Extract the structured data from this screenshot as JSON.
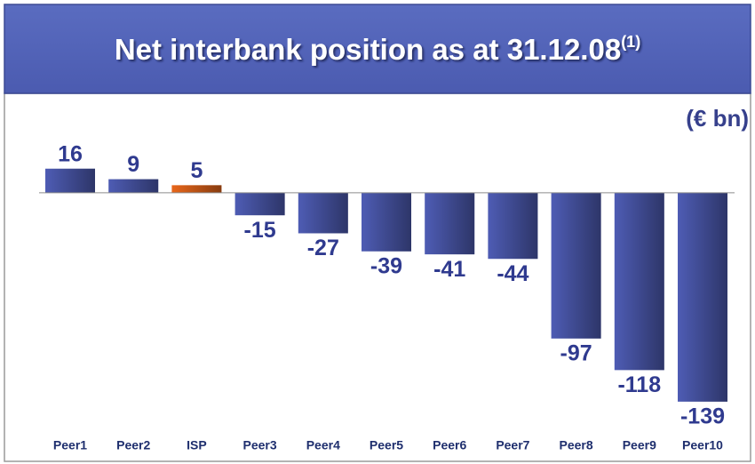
{
  "chart_data": {
    "type": "bar",
    "title": "Net interbank position as at 31.12.08",
    "title_note": "(1)",
    "unit_label": "(€ bn)",
    "categories": [
      "Peer1",
      "Peer2",
      "ISP",
      "Peer3",
      "Peer4",
      "Peer5",
      "Peer6",
      "Peer7",
      "Peer8",
      "Peer9",
      "Peer10"
    ],
    "values": [
      16,
      9,
      5,
      -15,
      -27,
      -39,
      -41,
      -44,
      -97,
      -118,
      -139
    ],
    "colors": [
      "#4e5cb4",
      "#4e5cb4",
      "#e8661a",
      "#4e5cb4",
      "#4e5cb4",
      "#4e5cb4",
      "#4e5cb4",
      "#4e5cb4",
      "#4e5cb4",
      "#4e5cb4",
      "#4e5cb4"
    ],
    "ylim": [
      -145,
      20
    ]
  }
}
